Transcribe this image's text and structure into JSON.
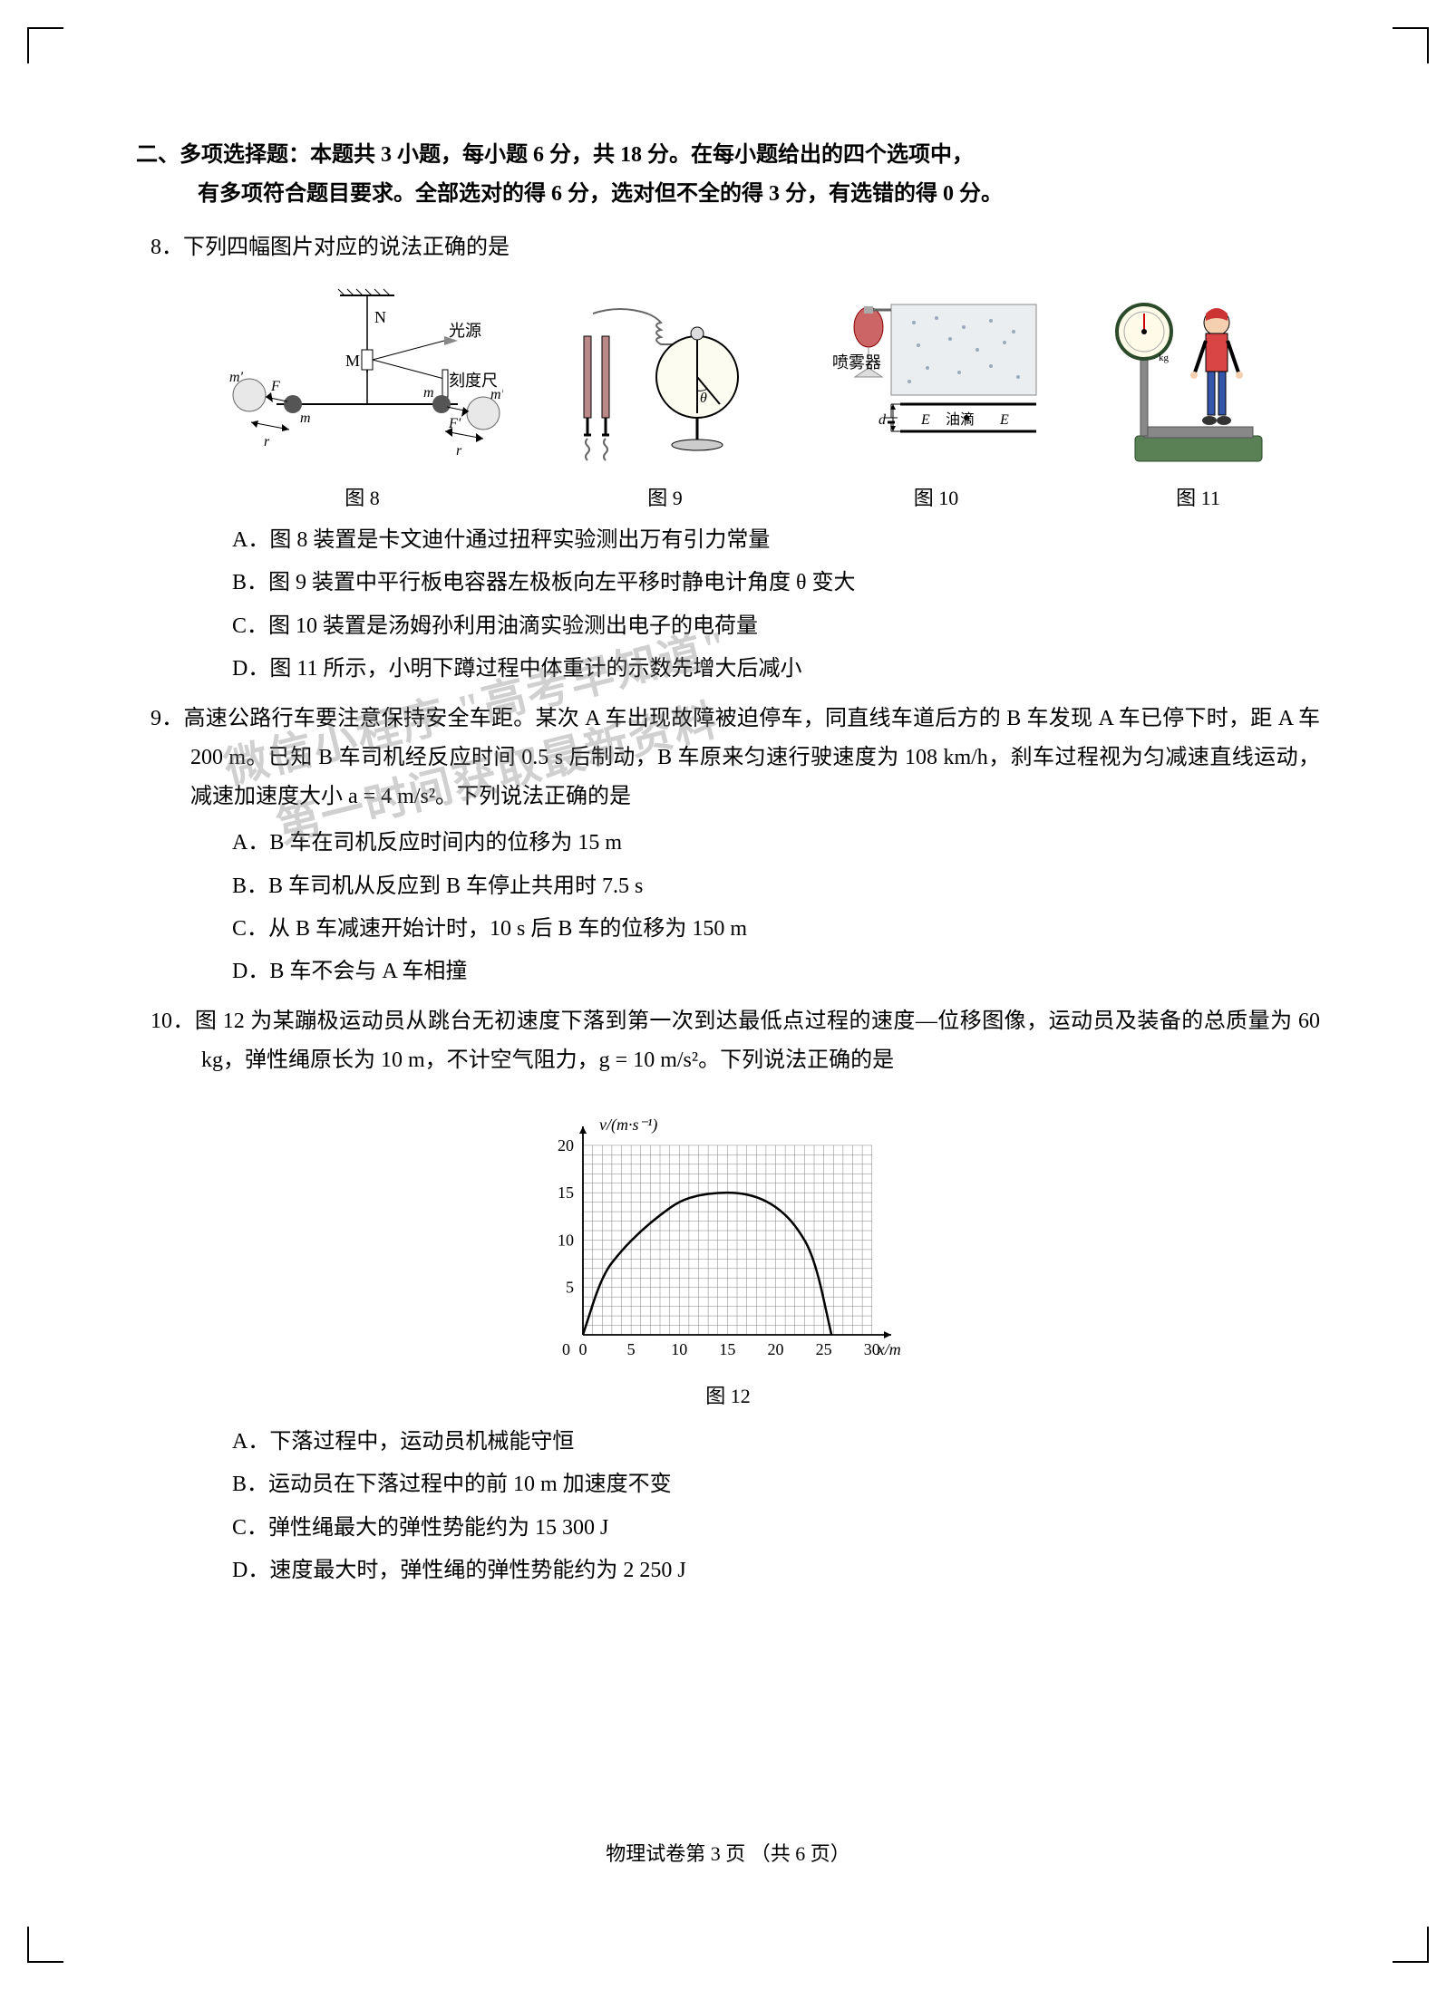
{
  "crop_marks": {
    "color": "#000000"
  },
  "section": {
    "label": "二、",
    "title_line1": "多项选择题：本题共 3 小题，每小题 6 分，共 18 分。在每小题给出的四个选项中，",
    "title_line2": "有多项符合题目要求。全部选对的得 6 分，选对但不全的得 3 分，有选错的得 0 分。"
  },
  "q8": {
    "number": "8．",
    "stem": "下列四幅图片对应的说法正确的是",
    "figures": {
      "fig8": {
        "caption": "图 8",
        "labels": {
          "N": "N",
          "M": "M",
          "light": "光源",
          "scale": "刻度尺",
          "m": "m",
          "mp": "m'",
          "F": "F",
          "Fp": "F'",
          "r": "r"
        }
      },
      "fig9": {
        "caption": "图 9",
        "labels": {
          "theta": "θ"
        }
      },
      "fig10": {
        "caption": "图 10",
        "labels": {
          "spray": "喷雾器",
          "d": "d",
          "E1": "E",
          "oil": "油滴",
          "E2": "E"
        }
      },
      "fig11": {
        "caption": "图 11",
        "labels": {
          "kg": "kg"
        }
      }
    },
    "choices": {
      "A": "A．图 8 装置是卡文迪什通过扭秤实验测出万有引力常量",
      "B": "B．图 9 装置中平行板电容器左极板向左平移时静电计角度 θ 变大",
      "C": "C．图 10 装置是汤姆孙利用油滴实验测出电子的电荷量",
      "D": "D．图 11 所示，小明下蹲过程中体重计的示数先增大后减小"
    }
  },
  "q9": {
    "number": "9．",
    "stem": "高速公路行车要注意保持安全车距。某次 A 车出现故障被迫停车，同直线车道后方的 B 车发现 A 车已停下时，距 A 车 200 m。已知 B 车司机经反应时间 0.5 s 后制动，B 车原来匀速行驶速度为 108 km/h，刹车过程视为匀减速直线运动，减速加速度大小 a = 4 m/s²。下列说法正确的是",
    "choices": {
      "A": "A．B 车在司机反应时间内的位移为 15 m",
      "B": "B．B 车司机从反应到 B 车停止共用时 7.5 s",
      "C": "C．从 B 车减速开始计时，10 s 后 B 车的位移为 150 m",
      "D": "D．B 车不会与 A 车相撞"
    }
  },
  "q10": {
    "number": "10．",
    "stem": "图 12 为某蹦极运动员从跳台无初速度下落到第一次到达最低点过程的速度—位移图像，运动员及装备的总质量为 60 kg，弹性绳原长为 10 m，不计空气阻力，g = 10 m/s²。下列说法正确的是",
    "graph": {
      "caption": "图 12",
      "y_label": "v/(m·s⁻¹)",
      "x_label": "x/m",
      "x_ticks": [
        0,
        5,
        10,
        15,
        20,
        25,
        30
      ],
      "y_ticks": [
        0,
        5,
        10,
        15,
        20
      ],
      "xlim": [
        0,
        32
      ],
      "ylim": [
        0,
        22
      ],
      "grid_color": "#808080",
      "curve_color": "#000000",
      "curve_points": [
        [
          0,
          0
        ],
        [
          2,
          6.3
        ],
        [
          4,
          8.9
        ],
        [
          6,
          10.95
        ],
        [
          8,
          12.65
        ],
        [
          10,
          14.1
        ],
        [
          12,
          14.75
        ],
        [
          14,
          15
        ],
        [
          16,
          15
        ],
        [
          18,
          14.6
        ],
        [
          20,
          13.6
        ],
        [
          22,
          11.7
        ],
        [
          24,
          8.3
        ],
        [
          25.8,
          0
        ]
      ],
      "background": "#ffffff"
    },
    "choices": {
      "A": "A．下落过程中，运动员机械能守恒",
      "B": "B．运动员在下落过程中的前 10 m 加速度不变",
      "C": "C．弹性绳最大的弹性势能约为 15 300 J",
      "D": "D．速度最大时，弹性绳的弹性势能约为 2 250 J"
    }
  },
  "footer": "物理试卷第 3 页  （共 6 页）",
  "watermark": {
    "line1": "微信小程序  \"高考早知道\"",
    "line2": "第一时间获取最新资料"
  },
  "colors": {
    "text": "#000000",
    "bg": "#ffffff",
    "figure_stroke": "#333333"
  }
}
